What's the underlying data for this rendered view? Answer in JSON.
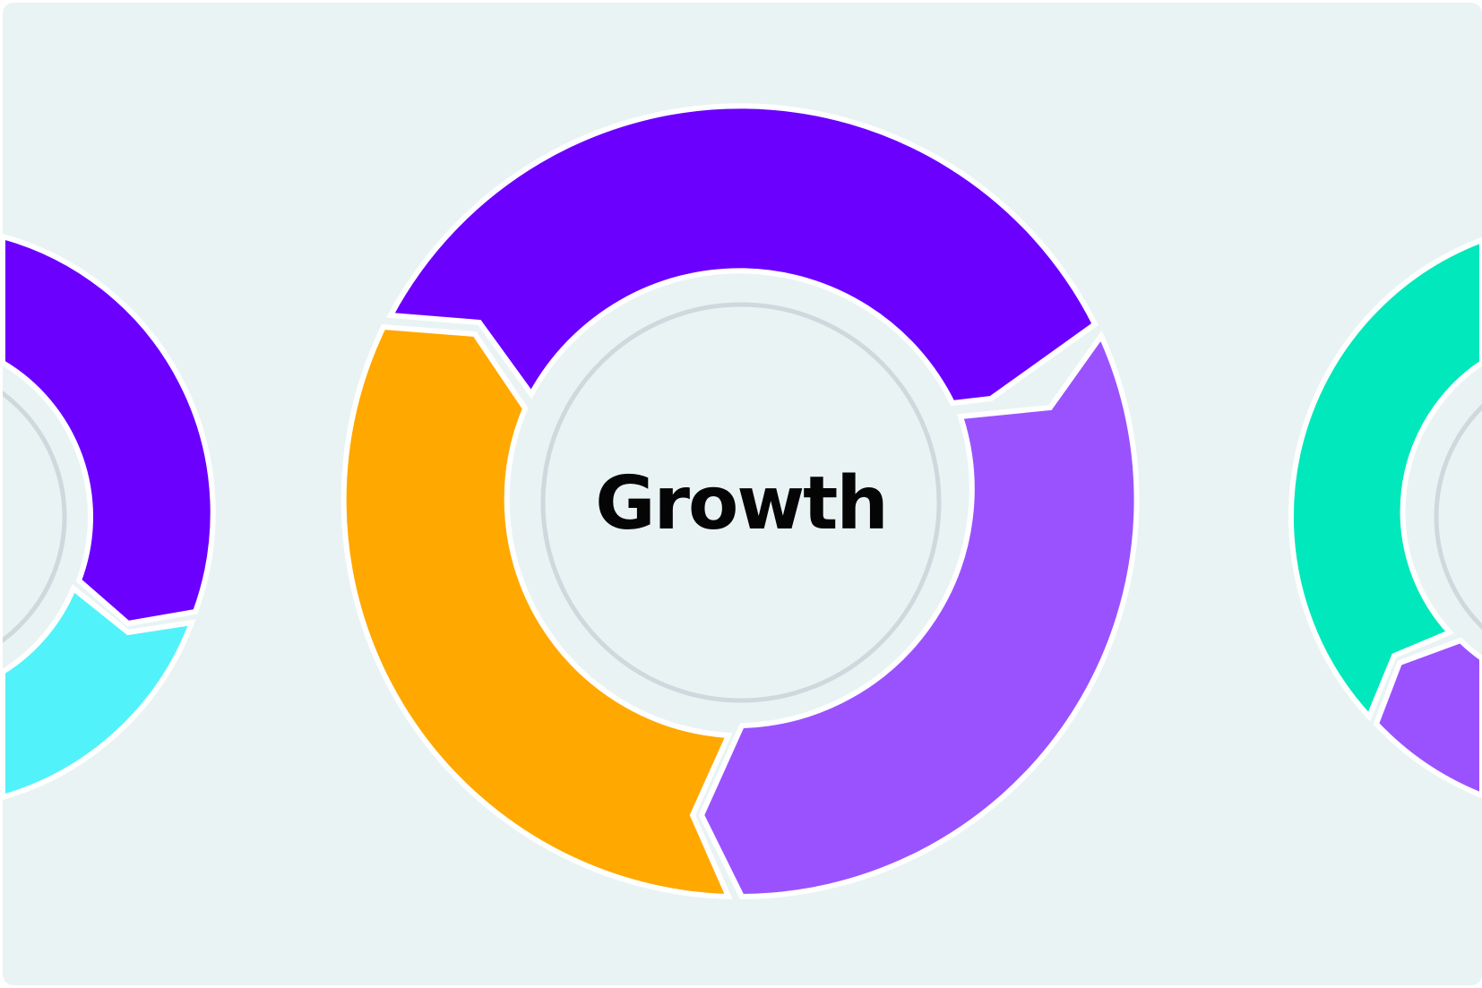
{
  "diagram": {
    "center_text": "Growth",
    "colors": {
      "background": "#e9f3f4",
      "inner_ring": "#cfd8dc",
      "violet": "#6b00ff",
      "light_purple": "#9a52ff",
      "orange": "#ffa800",
      "cyan": "#52f2fa",
      "mint": "#00e8bb",
      "gap": "#ffffff"
    },
    "main_cycle": {
      "segments": [
        {
          "name": "top",
          "color": "violet"
        },
        {
          "name": "right",
          "color": "light_purple"
        },
        {
          "name": "left",
          "color": "orange"
        }
      ]
    },
    "left_partial_cycle": {
      "segments": [
        {
          "name": "top",
          "color": "violet"
        },
        {
          "name": "bottom",
          "color": "cyan"
        }
      ]
    },
    "right_partial_cycle": {
      "segments": [
        {
          "name": "left",
          "color": "mint"
        },
        {
          "name": "bottom",
          "color": "light_purple"
        }
      ]
    }
  }
}
